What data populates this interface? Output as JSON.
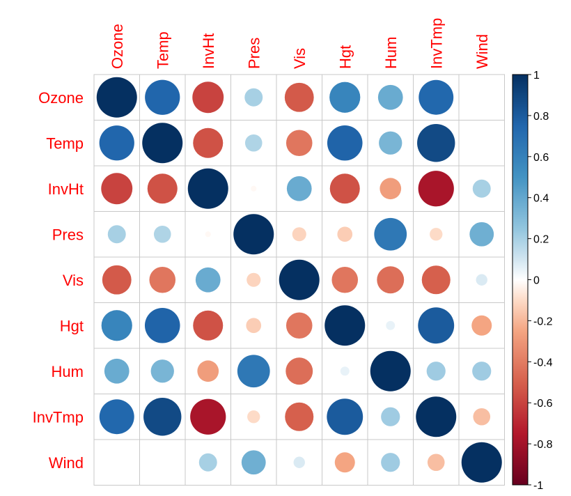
{
  "chart_data": {
    "type": "heatmap",
    "style": "circle",
    "variables": [
      "Ozone",
      "Temp",
      "InvHt",
      "Pres",
      "Vis",
      "Hgt",
      "Hum",
      "InvTmp",
      "Wind"
    ],
    "matrix": [
      [
        1.0,
        0.75,
        -0.6,
        0.2,
        -0.52,
        0.58,
        0.38,
        0.74,
        0.0
      ],
      [
        0.75,
        1.0,
        -0.55,
        0.18,
        -0.42,
        0.76,
        0.33,
        0.88,
        0.0
      ],
      [
        -0.6,
        -0.55,
        1.0,
        -0.02,
        0.38,
        -0.55,
        -0.28,
        -0.78,
        0.2
      ],
      [
        0.2,
        0.18,
        -0.02,
        1.0,
        -0.12,
        -0.14,
        0.65,
        -0.1,
        0.36
      ],
      [
        -0.52,
        -0.42,
        0.38,
        -0.12,
        1.0,
        -0.42,
        -0.45,
        -0.5,
        0.08
      ],
      [
        0.58,
        0.76,
        -0.55,
        -0.14,
        -0.42,
        1.0,
        0.05,
        0.8,
        -0.25
      ],
      [
        0.38,
        0.33,
        -0.28,
        0.65,
        -0.45,
        0.05,
        1.0,
        0.22,
        0.22
      ],
      [
        0.74,
        0.88,
        -0.78,
        -0.1,
        -0.5,
        0.8,
        0.22,
        1.0,
        -0.18
      ],
      [
        0.0,
        0.0,
        0.2,
        0.36,
        0.08,
        -0.25,
        0.22,
        -0.18,
        1.0
      ]
    ],
    "colorbar": {
      "range": [
        -1,
        1
      ],
      "ticks": [
        "1",
        "0.8",
        "0.6",
        "0.4",
        "0.2",
        "0",
        "-0.2",
        "-0.4",
        "-0.6",
        "-0.8",
        "-1"
      ]
    },
    "colors": {
      "negative_end": "#67001f",
      "mid": "#ffffff",
      "positive_end": "#053061",
      "label": "#ff0000",
      "grid": "#c8c8c8"
    }
  }
}
